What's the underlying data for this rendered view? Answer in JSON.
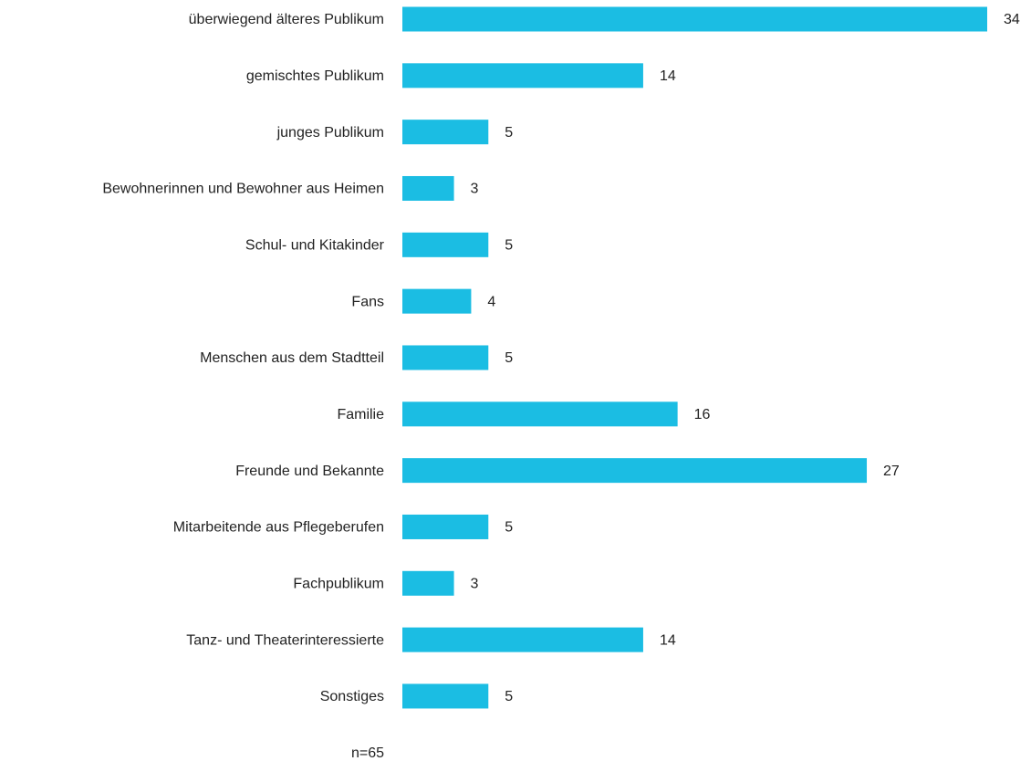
{
  "chart_data": {
    "type": "bar",
    "orientation": "horizontal",
    "categories": [
      "überwiegend älteres Publikum",
      "gemischtes Publikum",
      "junges Publikum",
      "Bewohnerinnen und Bewohner aus Heimen",
      "Schul- und Kitakinder",
      "Fans",
      "Menschen aus dem Stadtteil",
      "Familie",
      "Freunde und Bekannte",
      "Mitarbeitende aus Pflegeberufen",
      "Fachpublikum",
      "Tanz- und Theaterinteressierte",
      "Sonstiges"
    ],
    "values": [
      34,
      14,
      5,
      3,
      5,
      4,
      5,
      16,
      27,
      5,
      3,
      14,
      5
    ],
    "color": "#1bbde3",
    "note": "n=65"
  }
}
